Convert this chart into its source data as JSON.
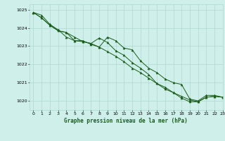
{
  "title": "Graphe pression niveau de la mer (hPa)",
  "bg_color": "#cff0ea",
  "grid_color": "#aed8d0",
  "line_color": "#1a5c1a",
  "marker_color": "#1a5c1a",
  "xlim": [
    -0.5,
    23
  ],
  "ylim": [
    1019.5,
    1025.3
  ],
  "yticks": [
    1020,
    1021,
    1022,
    1023,
    1024,
    1025
  ],
  "xticks": [
    0,
    1,
    2,
    3,
    4,
    5,
    6,
    7,
    8,
    9,
    10,
    11,
    12,
    13,
    14,
    15,
    16,
    17,
    18,
    19,
    20,
    21,
    22,
    23
  ],
  "series": [
    [
      1024.85,
      1024.7,
      1024.2,
      1023.9,
      1023.5,
      1023.3,
      1023.3,
      1023.1,
      1022.95,
      1023.5,
      1023.3,
      1022.9,
      1022.8,
      1022.2,
      1021.8,
      1021.55,
      1021.2,
      1021.0,
      1020.9,
      1020.1,
      1020.0,
      1020.3,
      1020.3,
      1020.2
    ],
    [
      1024.85,
      1024.55,
      1024.15,
      1023.85,
      1023.75,
      1023.3,
      1023.25,
      1023.15,
      1023.45,
      1023.2,
      1022.75,
      1022.5,
      1022.1,
      1021.8,
      1021.45,
      1020.95,
      1020.75,
      1020.45,
      1020.15,
      1019.95,
      1019.95,
      1020.2,
      1020.25,
      1020.2
    ],
    [
      1024.85,
      1024.55,
      1024.15,
      1023.85,
      1023.75,
      1023.5,
      1023.25,
      1023.15,
      1022.95,
      1022.7,
      1022.45,
      1022.15,
      1021.8,
      1021.55,
      1021.25,
      1020.95,
      1020.65,
      1020.45,
      1020.25,
      1020.05,
      1019.95,
      1020.2,
      1020.25,
      1020.2
    ]
  ]
}
